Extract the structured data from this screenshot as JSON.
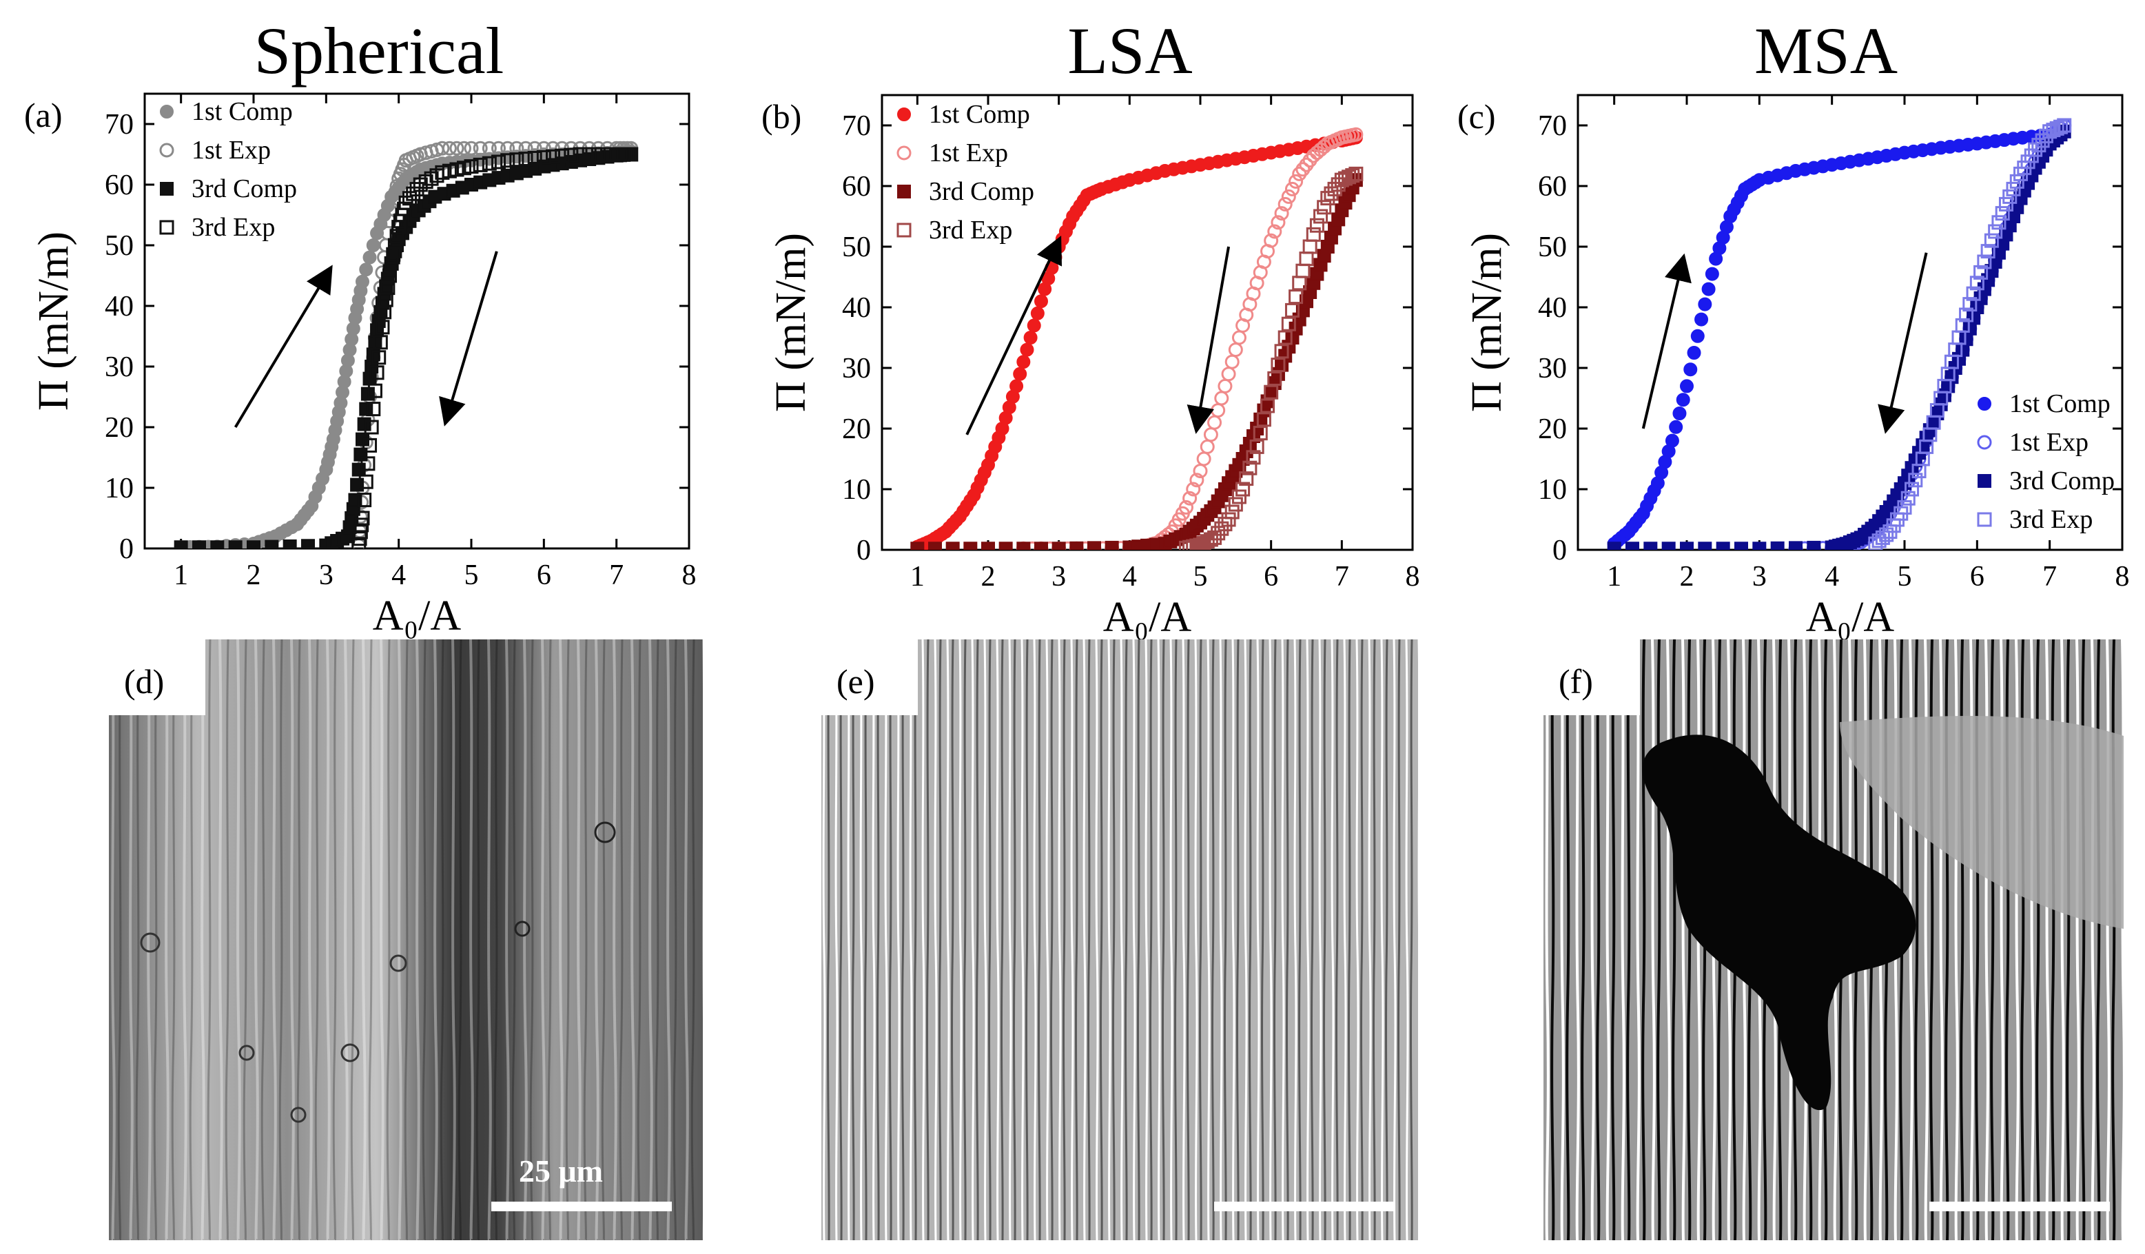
{
  "titles": {
    "a": "Spherical",
    "b": "LSA",
    "c": "MSA"
  },
  "colors": {
    "a_comp": "#8a8a8a",
    "a_exp": "#8a8a8a",
    "a_comp3": "#111111",
    "a_exp3": "#111111",
    "b_comp": "#ee1c1c",
    "b_exp": "#f08a8a",
    "b_comp3": "#7a0d0d",
    "b_exp3": "#a04848",
    "c_comp": "#1a1aee",
    "c_exp": "#5f5ff0",
    "c_comp3": "#0c0c8c",
    "c_exp3": "#7a7ae8"
  },
  "chart_data": [
    {
      "panel_label": "(a)",
      "type": "scatter",
      "title": "Spherical",
      "xlabel": "A₀/A",
      "ylabel": "Π (mN/m)",
      "xlim": [
        0.5,
        8
      ],
      "ylim": [
        0,
        75
      ],
      "xticks": [
        "1",
        "2",
        "3",
        "4",
        "5",
        "6",
        "7",
        "8"
      ],
      "yticks": [
        "0",
        "10",
        "20",
        "30",
        "40",
        "50",
        "60",
        "70"
      ],
      "legend_position": "top-left",
      "series": [
        {
          "name": "1st Comp",
          "marker": "filled-circle",
          "x": [
            1.0,
            1.5,
            2.0,
            2.3,
            2.6,
            2.8,
            3.0,
            3.1,
            3.2,
            3.3,
            3.4,
            3.5,
            3.7,
            3.9,
            4.1,
            4.3,
            4.6,
            5.0,
            5.5,
            6.0,
            6.5,
            7.0,
            7.2
          ],
          "y": [
            0.2,
            0.3,
            0.8,
            2,
            4,
            7,
            13,
            18,
            24,
            31,
            38,
            44,
            52,
            58,
            61,
            62.5,
            63.5,
            64,
            64.5,
            65,
            65,
            65.3,
            65.5
          ]
        },
        {
          "name": "1st Exp",
          "marker": "open-circle",
          "x": [
            7.2,
            7.0,
            6.5,
            6.0,
            5.5,
            5.0,
            4.6,
            4.3,
            4.1,
            4.0,
            3.9,
            3.8,
            3.7,
            3.6,
            3.5,
            3.45
          ],
          "y": [
            66,
            66,
            66,
            66,
            66,
            66,
            66,
            65,
            64,
            61,
            56,
            48,
            38,
            25,
            10,
            0.5
          ]
        },
        {
          "name": "3rd Comp",
          "marker": "filled-square",
          "x": [
            1.0,
            2.0,
            3.0,
            3.3,
            3.4,
            3.5,
            3.6,
            3.7,
            3.8,
            3.9,
            4.0,
            4.2,
            4.5,
            5.0,
            5.5,
            6.0,
            6.5,
            7.0,
            7.2
          ],
          "y": [
            0.2,
            0.2,
            0.5,
            2,
            8,
            18,
            28,
            36,
            42,
            47,
            51,
            55,
            58,
            60,
            61.5,
            63,
            64,
            64.8,
            65
          ]
        },
        {
          "name": "3rd Exp",
          "marker": "open-square",
          "x": [
            7.2,
            7.0,
            6.5,
            6.0,
            5.5,
            5.0,
            4.6,
            4.3,
            4.1,
            4.0,
            3.9,
            3.8,
            3.7,
            3.6,
            3.5,
            3.45
          ],
          "y": [
            65,
            65,
            65,
            64.5,
            64,
            63,
            62,
            60,
            57,
            53,
            47,
            39,
            29,
            17,
            5,
            0.5
          ]
        }
      ],
      "annotations": [
        {
          "type": "arrow",
          "from": [
            1.75,
            20
          ],
          "to": [
            3.05,
            46
          ]
        },
        {
          "type": "arrow",
          "from": [
            5.35,
            49
          ],
          "to": [
            4.65,
            21
          ]
        }
      ]
    },
    {
      "panel_label": "(b)",
      "type": "scatter",
      "title": "LSA",
      "xlabel": "A₀/A",
      "ylabel": "Π (mN/m)",
      "xlim": [
        0.5,
        8
      ],
      "ylim": [
        0,
        75
      ],
      "xticks": [
        "1",
        "2",
        "3",
        "4",
        "5",
        "6",
        "7",
        "8"
      ],
      "yticks": [
        "0",
        "10",
        "20",
        "30",
        "40",
        "50",
        "60",
        "70"
      ],
      "legend_position": "top-left",
      "series": [
        {
          "name": "1st Comp",
          "marker": "filled-circle",
          "x": [
            1.0,
            1.2,
            1.4,
            1.6,
            1.8,
            2.0,
            2.2,
            2.4,
            2.6,
            2.8,
            3.0,
            3.2,
            3.4,
            3.6,
            4.0,
            4.5,
            5.0,
            5.5,
            6.0,
            6.5,
            7.0,
            7.2
          ],
          "y": [
            0.5,
            1.5,
            3,
            5.5,
            9,
            14,
            20,
            27,
            35,
            43,
            50,
            55,
            58.5,
            59.5,
            61,
            62.5,
            63.5,
            64.5,
            65.5,
            66.5,
            67.5,
            68
          ]
        },
        {
          "name": "1st Exp",
          "marker": "open-circle",
          "x": [
            7.2,
            7.0,
            6.8,
            6.6,
            6.4,
            6.2,
            6.0,
            5.8,
            5.6,
            5.4,
            5.2,
            5.0,
            4.8,
            4.6,
            4.4,
            4.2,
            4.0,
            3.5,
            3.0,
            2.5
          ],
          "y": [
            68.5,
            68,
            67,
            65,
            62,
            57,
            51,
            44,
            37,
            29,
            21,
            13,
            7,
            3,
            1.2,
            0.5,
            0.3,
            0.2,
            0.2,
            0.2
          ]
        },
        {
          "name": "3rd Comp",
          "marker": "filled-square",
          "x": [
            1.0,
            2.0,
            3.0,
            4.0,
            4.5,
            4.8,
            5.0,
            5.2,
            5.4,
            5.6,
            5.8,
            6.0,
            6.2,
            6.4,
            6.6,
            6.8,
            7.0,
            7.2
          ],
          "y": [
            0.2,
            0.2,
            0.2,
            0.4,
            1,
            2.5,
            4.5,
            7,
            11,
            15,
            20,
            26,
            32,
            38,
            44,
            50,
            56,
            61
          ]
        },
        {
          "name": "3rd Exp",
          "marker": "open-square",
          "x": [
            7.2,
            7.0,
            6.8,
            6.6,
            6.4,
            6.2,
            6.0,
            5.8,
            5.6,
            5.4,
            5.2,
            5.0,
            4.8
          ],
          "y": [
            62,
            61,
            58,
            52,
            44,
            35,
            26,
            17,
            10,
            5,
            2,
            0.8,
            0.3
          ]
        }
      ],
      "annotations": [
        {
          "type": "arrow",
          "from": [
            1.7,
            19
          ],
          "to": [
            3.0,
            51
          ]
        },
        {
          "type": "arrow",
          "from": [
            5.4,
            50
          ],
          "to": [
            4.95,
            20
          ]
        }
      ]
    },
    {
      "panel_label": "(c)",
      "type": "scatter",
      "title": "MSA",
      "xlabel": "A₀/A",
      "ylabel": "Π (mN/m)",
      "xlim": [
        0.5,
        8
      ],
      "ylim": [
        0,
        75
      ],
      "xticks": [
        "1",
        "2",
        "3",
        "4",
        "5",
        "6",
        "7",
        "8"
      ],
      "yticks": [
        "0",
        "10",
        "20",
        "30",
        "40",
        "50",
        "60",
        "70"
      ],
      "legend_position": "bottom-right",
      "series": [
        {
          "name": "1st Comp",
          "marker": "filled-circle",
          "x": [
            1.0,
            1.2,
            1.4,
            1.6,
            1.8,
            2.0,
            2.2,
            2.4,
            2.6,
            2.8,
            3.0,
            3.5,
            4.0,
            4.5,
            5.0,
            5.5,
            6.0,
            6.5,
            7.0,
            7.2
          ],
          "y": [
            1,
            3,
            6,
            11,
            18,
            27,
            38,
            48,
            55,
            59.5,
            61,
            62.5,
            63.5,
            64.5,
            65.5,
            66.3,
            67,
            67.8,
            68.5,
            69
          ]
        },
        {
          "name": "1st Exp",
          "marker": "open-circle",
          "x": [
            7.2,
            7.0,
            6.8,
            6.6,
            6.4,
            6.2,
            6.0,
            5.8,
            5.6,
            5.4,
            5.2,
            5.0,
            4.8,
            4.6,
            4.4,
            4.2,
            4.0,
            3.5
          ],
          "y": [
            70,
            68,
            64,
            59,
            53,
            46,
            40,
            33,
            27,
            21,
            15,
            10,
            6,
            3,
            1.3,
            0.5,
            0.3,
            0.2
          ]
        },
        {
          "name": "3rd Comp",
          "marker": "filled-square",
          "x": [
            1.0,
            2.0,
            3.0,
            4.0,
            4.2,
            4.4,
            4.6,
            4.8,
            5.0,
            5.2,
            5.4,
            5.6,
            5.8,
            6.0,
            6.2,
            6.4,
            6.6,
            6.8,
            7.0,
            7.2
          ],
          "y": [
            0.2,
            0.2,
            0.2,
            0.4,
            1,
            2,
            4,
            7,
            11,
            16,
            21,
            27,
            33,
            40,
            46,
            52,
            58,
            63,
            67,
            69
          ]
        },
        {
          "name": "3rd Exp",
          "marker": "open-square",
          "x": [
            7.2,
            7.0,
            6.8,
            6.6,
            6.4,
            6.2,
            6.0,
            5.8,
            5.6,
            5.4,
            5.2,
            5.0,
            4.8,
            4.6
          ],
          "y": [
            70,
            69,
            66,
            62,
            57,
            51,
            44,
            37,
            29,
            21,
            13,
            7,
            3,
            1
          ]
        }
      ],
      "annotations": [
        {
          "type": "arrow",
          "from": [
            1.4,
            20
          ],
          "to": [
            1.95,
            48
          ]
        },
        {
          "type": "arrow",
          "from": [
            5.3,
            49
          ],
          "to": [
            4.75,
            20
          ]
        }
      ]
    }
  ],
  "micrographs": [
    {
      "label": "(d)",
      "scale_text": "25 μm"
    },
    {
      "label": "(e)"
    },
    {
      "label": "(f)"
    }
  ]
}
